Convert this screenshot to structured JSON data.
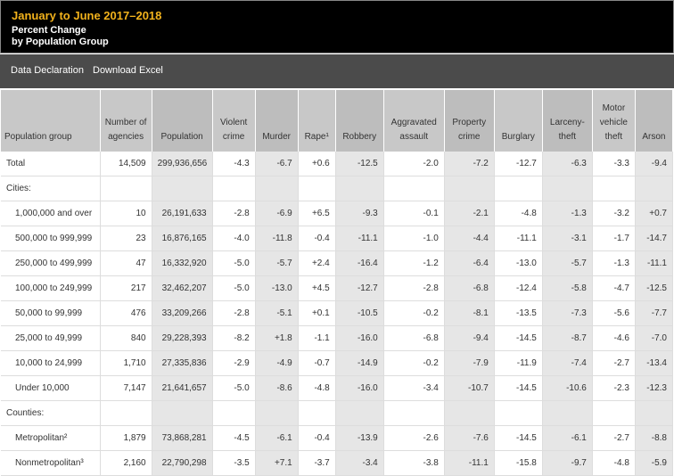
{
  "header": {
    "title": "January to June 2017–2018",
    "subtitle": "Percent Change",
    "subtitle2": "by Population Group"
  },
  "toolbar": {
    "items": [
      "Data Declaration",
      "Download Excel"
    ]
  },
  "table": {
    "columns": [
      "Population group",
      "Number of agencies",
      "Population",
      "Violent crime",
      "Murder",
      "Rape¹",
      "Robbery",
      "Aggravated assault",
      "Property crime",
      "Burglary",
      "Larceny-theft",
      "Motor vehicle theft",
      "Arson"
    ],
    "rows": [
      [
        "Total",
        "14,509",
        "299,936,656",
        "-4.3",
        "-6.7",
        "+0.6",
        "-12.5",
        "-2.0",
        "-7.2",
        "-12.7",
        "-6.3",
        "-3.3",
        "-9.4"
      ],
      [
        "Cities:"
      ],
      [
        "1,000,000 and over",
        "10",
        "26,191,633",
        "-2.8",
        "-6.9",
        "+6.5",
        "-9.3",
        "-0.1",
        "-2.1",
        "-4.8",
        "-1.3",
        "-3.2",
        "+0.7"
      ],
      [
        "500,000 to 999,999",
        "23",
        "16,876,165",
        "-4.0",
        "-11.8",
        "-0.4",
        "-11.1",
        "-1.0",
        "-4.4",
        "-11.1",
        "-3.1",
        "-1.7",
        "-14.7"
      ],
      [
        "250,000 to 499,999",
        "47",
        "16,332,920",
        "-5.0",
        "-5.7",
        "+2.4",
        "-16.4",
        "-1.2",
        "-6.4",
        "-13.0",
        "-5.7",
        "-1.3",
        "-11.1"
      ],
      [
        "100,000 to 249,999",
        "217",
        "32,462,207",
        "-5.0",
        "-13.0",
        "+4.5",
        "-12.7",
        "-2.8",
        "-6.8",
        "-12.4",
        "-5.8",
        "-4.7",
        "-12.5"
      ],
      [
        "50,000 to 99,999",
        "476",
        "33,209,266",
        "-2.8",
        "-5.1",
        "+0.1",
        "-10.5",
        "-0.2",
        "-8.1",
        "-13.5",
        "-7.3",
        "-5.6",
        "-7.7"
      ],
      [
        "25,000 to 49,999",
        "840",
        "29,228,393",
        "-8.2",
        "+1.8",
        "-1.1",
        "-16.0",
        "-6.8",
        "-9.4",
        "-14.5",
        "-8.7",
        "-4.6",
        "-7.0"
      ],
      [
        "10,000 to 24,999",
        "1,710",
        "27,335,836",
        "-2.9",
        "-4.9",
        "-0.7",
        "-14.9",
        "-0.2",
        "-7.9",
        "-11.9",
        "-7.4",
        "-2.7",
        "-13.4"
      ],
      [
        "Under 10,000",
        "7,147",
        "21,641,657",
        "-5.0",
        "-8.6",
        "-4.8",
        "-16.0",
        "-3.4",
        "-10.7",
        "-14.5",
        "-10.6",
        "-2.3",
        "-12.3"
      ],
      [
        "Counties:"
      ],
      [
        "Metropolitan²",
        "1,879",
        "73,868,281",
        "-4.5",
        "-6.1",
        "-0.4",
        "-13.9",
        "-2.6",
        "-7.6",
        "-14.5",
        "-6.1",
        "-2.7",
        "-8.8"
      ],
      [
        "Nonmetropolitan³",
        "2,160",
        "22,790,298",
        "-3.5",
        "+7.1",
        "-3.7",
        "-3.4",
        "-3.8",
        "-11.1",
        "-15.8",
        "-9.7",
        "-4.8",
        "-5.9"
      ]
    ]
  }
}
